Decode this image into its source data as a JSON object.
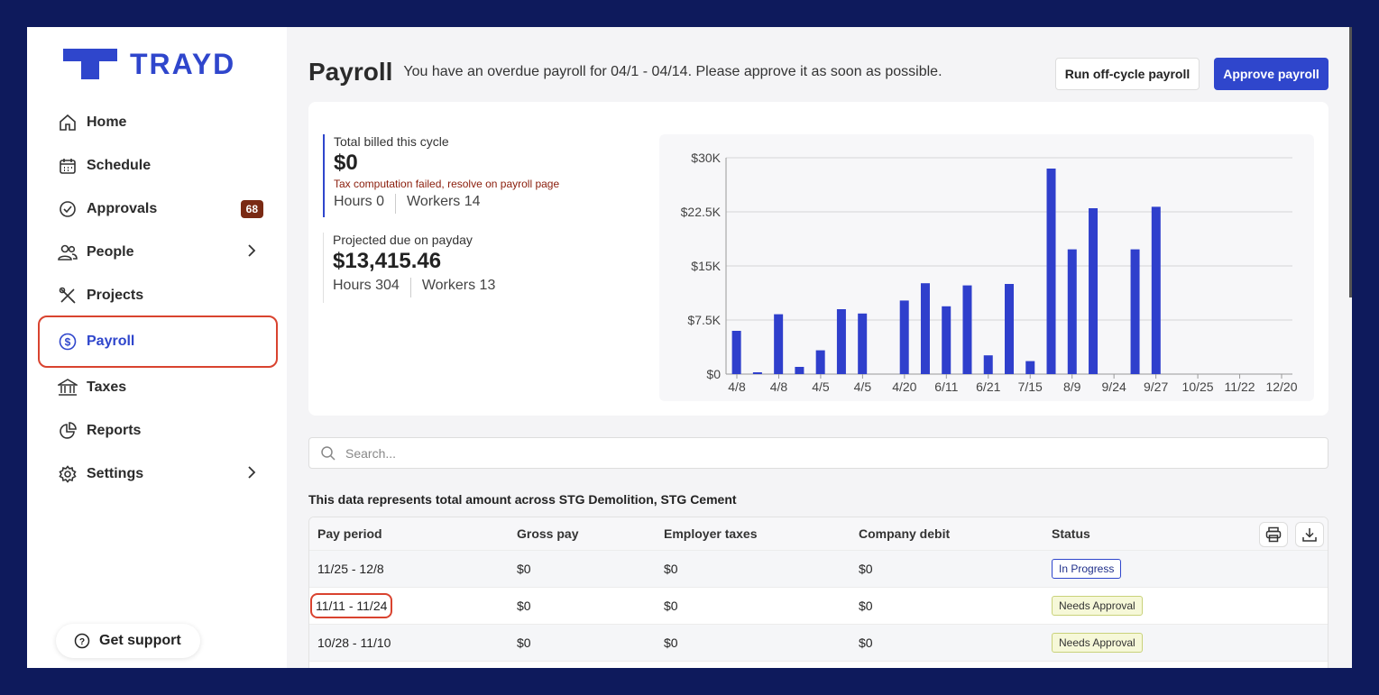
{
  "brand": {
    "name": "TRAYD",
    "color": "#2f46cc"
  },
  "sidebar": {
    "items": [
      {
        "label": "Home",
        "icon": "home-icon"
      },
      {
        "label": "Schedule",
        "icon": "calendar-icon"
      },
      {
        "label": "Approvals",
        "icon": "check-circle-icon",
        "badge": "68"
      },
      {
        "label": "People",
        "icon": "people-icon"
      },
      {
        "label": "Projects",
        "icon": "tools-icon"
      },
      {
        "label": "Payroll",
        "icon": "dollar-icon"
      },
      {
        "label": "Taxes",
        "icon": "bank-icon"
      },
      {
        "label": "Reports",
        "icon": "pie-chart-icon"
      },
      {
        "label": "Settings",
        "icon": "gear-icon"
      }
    ],
    "support_label": "Get support"
  },
  "header": {
    "title": "Payroll",
    "message": "You have an overdue payroll for 04/1 - 04/14. Please approve it as soon as possible.",
    "offcycle_label": "Run off-cycle payroll",
    "approve_label": "Approve payroll"
  },
  "summary": {
    "billed": {
      "label": "Total billed this cycle",
      "value": "$0",
      "error": "Tax computation failed, resolve on payroll page",
      "hours": "Hours 0",
      "workers": "Workers 14"
    },
    "projected": {
      "label": "Projected due on payday",
      "value": "$13,415.46",
      "hours": "Hours 304",
      "workers": "Workers 13"
    }
  },
  "chart_data": {
    "type": "bar",
    "title": "",
    "xlabel": "",
    "ylabel": "",
    "ylim": [
      0,
      30000
    ],
    "yticks": [
      "$0",
      "$7.5K",
      "$15K",
      "$22.5K",
      "$30K"
    ],
    "xtick_labels": [
      "4/8",
      "4/8",
      "4/5",
      "4/5",
      "4/20",
      "6/11",
      "6/21",
      "7/15",
      "8/9",
      "9/24",
      "9/27",
      "10/25",
      "11/22",
      "12/20"
    ],
    "values": [
      6000,
      250,
      8300,
      1000,
      3300,
      9000,
      8400,
      0,
      10200,
      12600,
      9400,
      12300,
      2600,
      12500,
      1800,
      28500,
      17300,
      23000,
      0,
      17300,
      23200,
      0,
      0,
      0,
      0,
      0,
      0
    ],
    "bar_color": "#2f3fcc"
  },
  "search": {
    "placeholder": "Search..."
  },
  "data_note": "This data represents total amount across STG Demolition, STG Cement",
  "table": {
    "columns": [
      "Pay period",
      "Gross pay",
      "Employer taxes",
      "Company debit",
      "Status"
    ],
    "rows": [
      {
        "period": "11/25 - 12/8",
        "gross": "$0",
        "taxes": "$0",
        "debit": "$0",
        "status": "In Progress"
      },
      {
        "period": "11/11 - 11/24",
        "gross": "$0",
        "taxes": "$0",
        "debit": "$0",
        "status": "Needs Approval"
      },
      {
        "period": "10/28 - 11/10",
        "gross": "$0",
        "taxes": "$0",
        "debit": "$0",
        "status": "Needs Approval"
      }
    ]
  }
}
